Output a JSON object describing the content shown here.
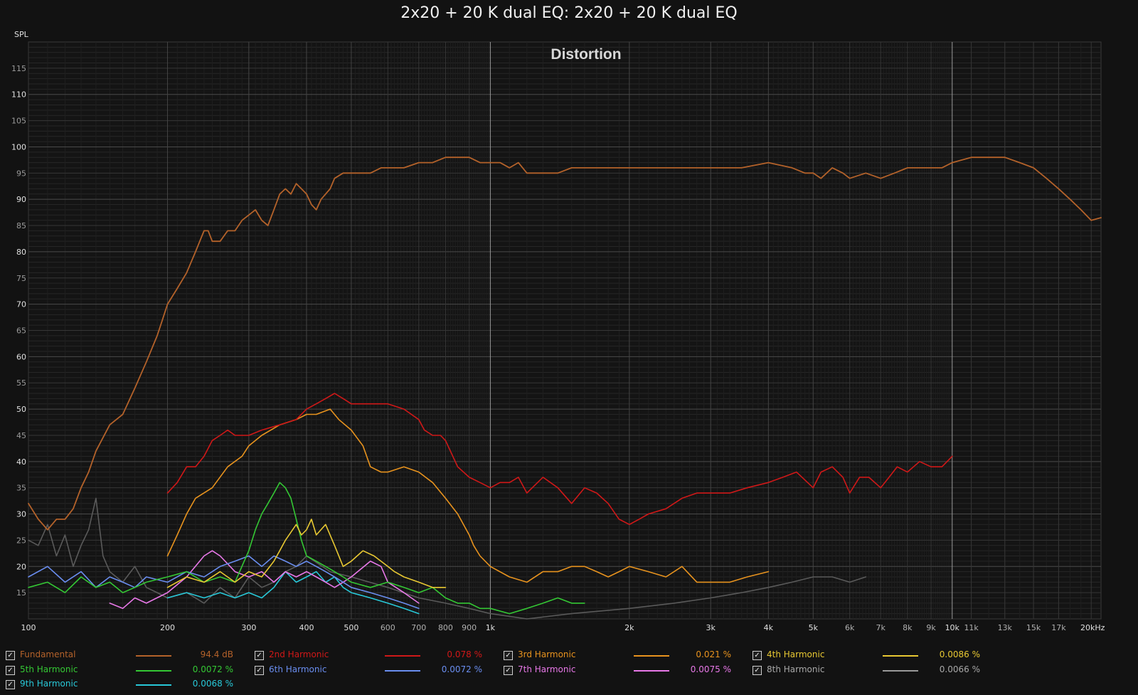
{
  "window": {
    "title": "2x20 + 20 K dual EQ: 2x20 + 20 K dual EQ"
  },
  "chart_data": {
    "type": "line",
    "title": "Distortion",
    "ylabel": "SPL",
    "xlabel": "",
    "x_scale": "log",
    "xlim": [
      100,
      21000
    ],
    "ylim": [
      10,
      120
    ],
    "grid": true,
    "y_ticks": [
      15,
      20,
      25,
      30,
      35,
      40,
      45,
      50,
      55,
      60,
      65,
      70,
      75,
      80,
      85,
      90,
      95,
      100,
      105,
      110,
      115
    ],
    "y_tick_labels": [
      "15",
      "20",
      "25",
      "30",
      "35",
      "40",
      "45",
      "50",
      "55",
      "60",
      "65",
      "70",
      "75",
      "80",
      "85",
      "90",
      "95",
      "100",
      "105",
      "110",
      "115"
    ],
    "x_ticks": [
      100,
      200,
      300,
      400,
      500,
      600,
      700,
      800,
      900,
      1000,
      2000,
      3000,
      4000,
      5000,
      6000,
      7000,
      8000,
      9000,
      10000,
      11000,
      13000,
      15000,
      17000,
      20000
    ],
    "x_tick_labels": [
      "100",
      "200",
      "300",
      "400",
      "500",
      "600",
      "700",
      "800",
      "900",
      "1k",
      "2k",
      "3k",
      "4k",
      "5k",
      "6k",
      "7k",
      "8k",
      "9k",
      "10k",
      "11k",
      "13k",
      "15k",
      "17k",
      "20kHz"
    ],
    "series": [
      {
        "name": "Fundamental",
        "legend_value": "94.4 dB",
        "color": "#b4622a",
        "x": [
          100,
          105,
          110,
          115,
          120,
          125,
          130,
          135,
          140,
          150,
          160,
          170,
          180,
          190,
          195,
          200,
          210,
          220,
          230,
          240,
          245,
          250,
          260,
          270,
          280,
          290,
          300,
          310,
          320,
          330,
          340,
          350,
          360,
          370,
          380,
          390,
          400,
          410,
          420,
          430,
          450,
          460,
          480,
          500,
          520,
          550,
          580,
          600,
          650,
          700,
          750,
          800,
          850,
          900,
          950,
          1000,
          1050,
          1100,
          1150,
          1200,
          1300,
          1400,
          1500,
          1700,
          2000,
          2500,
          3000,
          3500,
          4000,
          4500,
          4800,
          5000,
          5200,
          5500,
          5800,
          6000,
          6500,
          7000,
          7500,
          8000,
          8500,
          9000,
          9500,
          10000,
          11000,
          12000,
          13000,
          14000,
          15000,
          16000,
          17000,
          18000,
          19000,
          20000,
          21000
        ],
        "y": [
          32,
          29,
          27,
          29,
          29,
          31,
          35,
          38,
          42,
          47,
          49,
          54,
          59,
          64,
          67,
          70,
          73,
          76,
          80,
          84,
          84,
          82,
          82,
          84,
          84,
          86,
          87,
          88,
          86,
          85,
          88,
          91,
          92,
          91,
          93,
          92,
          91,
          89,
          88,
          90,
          92,
          94,
          95,
          95,
          95,
          95,
          96,
          96,
          96,
          97,
          97,
          98,
          98,
          98,
          97,
          97,
          97,
          96,
          97,
          95,
          95,
          95,
          96,
          96,
          96,
          96,
          96,
          96,
          97,
          96,
          95,
          95,
          94,
          96,
          95,
          94,
          95,
          94,
          95,
          96,
          96,
          96,
          96,
          97,
          98,
          98,
          98,
          97,
          96,
          94,
          92,
          90,
          88,
          86,
          86.5
        ],
        "visible": true
      },
      {
        "name": "2nd Harmonic",
        "legend_value": "0.078 %",
        "color": "#d01818",
        "x": [
          200,
          210,
          220,
          230,
          240,
          250,
          260,
          270,
          280,
          300,
          320,
          350,
          380,
          400,
          420,
          440,
          460,
          480,
          500,
          550,
          600,
          650,
          700,
          720,
          750,
          780,
          800,
          850,
          900,
          950,
          1000,
          1050,
          1100,
          1150,
          1200,
          1300,
          1400,
          1500,
          1600,
          1700,
          1800,
          1900,
          2000,
          2100,
          2200,
          2400,
          2600,
          2800,
          3000,
          3300,
          3600,
          4000,
          4300,
          4600,
          5000,
          5200,
          5500,
          5800,
          6000,
          6300,
          6600,
          7000,
          7300,
          7600,
          8000,
          8500,
          9000,
          9500,
          10000
        ],
        "y": [
          34,
          36,
          39,
          39,
          41,
          44,
          45,
          46,
          45,
          45,
          46,
          47,
          48,
          50,
          51,
          52,
          53,
          52,
          51,
          51,
          51,
          50,
          48,
          46,
          45,
          45,
          44,
          39,
          37,
          36,
          35,
          36,
          36,
          37,
          34,
          37,
          35,
          32,
          35,
          34,
          32,
          29,
          28,
          29,
          30,
          31,
          33,
          34,
          34,
          34,
          35,
          36,
          37,
          38,
          35,
          38,
          39,
          37,
          34,
          37,
          37,
          35,
          37,
          39,
          38,
          40,
          39,
          39,
          41
        ],
        "visible": true
      },
      {
        "name": "3rd Harmonic",
        "legend_value": "0.021 %",
        "color": "#e8931e",
        "x": [
          200,
          210,
          220,
          230,
          250,
          270,
          290,
          300,
          320,
          350,
          380,
          400,
          420,
          450,
          470,
          500,
          530,
          550,
          580,
          600,
          650,
          700,
          750,
          800,
          850,
          900,
          920,
          950,
          1000,
          1100,
          1200,
          1300,
          1400,
          1500,
          1600,
          1700,
          1800,
          1900,
          2000,
          2200,
          2400,
          2600,
          2800,
          3000,
          3300,
          3600,
          4000
        ],
        "y": [
          22,
          26,
          30,
          33,
          35,
          39,
          41,
          43,
          45,
          47,
          48,
          49,
          49,
          50,
          48,
          46,
          43,
          39,
          38,
          38,
          39,
          38,
          36,
          33,
          30,
          26,
          24,
          22,
          20,
          18,
          17,
          19,
          19,
          20,
          20,
          19,
          18,
          19,
          20,
          19,
          18,
          20,
          17,
          17,
          17,
          18,
          19
        ],
        "visible": true
      },
      {
        "name": "4th Harmonic",
        "legend_value": "0.0086 %",
        "color": "#e8c832",
        "x": [
          200,
          220,
          240,
          260,
          280,
          300,
          320,
          340,
          350,
          360,
          380,
          390,
          400,
          410,
          420,
          440,
          460,
          480,
          500,
          530,
          560,
          600,
          620,
          650,
          700,
          750,
          800
        ],
        "y": [
          16,
          18,
          17,
          19,
          17,
          19,
          18,
          21,
          23,
          25,
          28,
          26,
          27,
          29,
          26,
          28,
          24,
          20,
          21,
          23,
          22,
          20,
          19,
          18,
          17,
          16,
          16
        ],
        "visible": true
      },
      {
        "name": "5th Harmonic",
        "legend_value": "0.0072 %",
        "color": "#34c834",
        "x": [
          100,
          110,
          120,
          130,
          140,
          150,
          160,
          170,
          180,
          200,
          220,
          240,
          260,
          280,
          300,
          310,
          320,
          330,
          340,
          350,
          360,
          370,
          380,
          390,
          400,
          420,
          440,
          460,
          480,
          500,
          550,
          600,
          650,
          700,
          750,
          800,
          850,
          900,
          950,
          1000,
          1100,
          1200,
          1300,
          1400,
          1500,
          1600
        ],
        "y": [
          16,
          17,
          15,
          18,
          16,
          17,
          15,
          16,
          17,
          18,
          19,
          17,
          18,
          17,
          23,
          27,
          30,
          32,
          34,
          36,
          35,
          33,
          29,
          25,
          22,
          21,
          20,
          19,
          18,
          17,
          16,
          17,
          16,
          15,
          16,
          14,
          13,
          13,
          12,
          12,
          11,
          12,
          13,
          14,
          13,
          13
        ],
        "visible": true
      },
      {
        "name": "6th Harmonic",
        "legend_value": "0.0072 %",
        "color": "#6a8ef0",
        "x": [
          100,
          110,
          120,
          130,
          140,
          150,
          160,
          170,
          180,
          200,
          220,
          240,
          260,
          280,
          300,
          320,
          340,
          360,
          380,
          400,
          420,
          440,
          460,
          480,
          500,
          550,
          600,
          650,
          700
        ],
        "y": [
          18,
          20,
          17,
          19,
          16,
          18,
          17,
          16,
          18,
          17,
          19,
          18,
          20,
          21,
          22,
          20,
          22,
          21,
          20,
          21,
          20,
          19,
          18,
          17,
          16,
          15,
          14,
          13,
          12
        ],
        "visible": true
      },
      {
        "name": "7th Harmonic",
        "legend_value": "0.0075 %",
        "color": "#e878e8",
        "x": [
          150,
          160,
          170,
          180,
          200,
          220,
          240,
          250,
          260,
          280,
          300,
          320,
          340,
          360,
          380,
          400,
          420,
          440,
          460,
          480,
          500,
          550,
          580,
          600,
          650,
          700
        ],
        "y": [
          13,
          12,
          14,
          13,
          15,
          18,
          22,
          23,
          22,
          19,
          18,
          19,
          17,
          19,
          18,
          19,
          18,
          17,
          16,
          17,
          18,
          21,
          20,
          17,
          15,
          13
        ],
        "visible": true
      },
      {
        "name": "8th Harmonic",
        "legend_value": "0.0066 %",
        "color": "#9a9a9a",
        "x": [
          100,
          105,
          110,
          115,
          120,
          125,
          130,
          135,
          140,
          145,
          150,
          160,
          170,
          180,
          190,
          200,
          220,
          240,
          260,
          280,
          300,
          320,
          340,
          360,
          380,
          400,
          450,
          500,
          600,
          700,
          800,
          900,
          1000,
          1200,
          1500,
          2000,
          2500,
          3000,
          3500,
          4000,
          4500,
          5000,
          5500,
          6000,
          6500
        ],
        "y": [
          25,
          24,
          28,
          22,
          26,
          20,
          24,
          27,
          33,
          22,
          19,
          17,
          20,
          16,
          15,
          14,
          15,
          13,
          16,
          14,
          18,
          16,
          17,
          19,
          20,
          22,
          19,
          18,
          16,
          14,
          13,
          12,
          11,
          10,
          11,
          12,
          13,
          14,
          15,
          16,
          17,
          18,
          18,
          17,
          18
        ],
        "visible": true
      },
      {
        "name": "9th Harmonic",
        "legend_value": "0.0068 %",
        "color": "#28c8d8",
        "x": [
          200,
          220,
          240,
          260,
          280,
          300,
          320,
          340,
          360,
          380,
          400,
          420,
          440,
          460,
          480,
          500,
          550,
          600,
          650,
          700
        ],
        "y": [
          14,
          15,
          14,
          15,
          14,
          15,
          14,
          16,
          19,
          17,
          18,
          19,
          17,
          18,
          16,
          15,
          14,
          13,
          12,
          11
        ],
        "visible": true
      }
    ]
  }
}
